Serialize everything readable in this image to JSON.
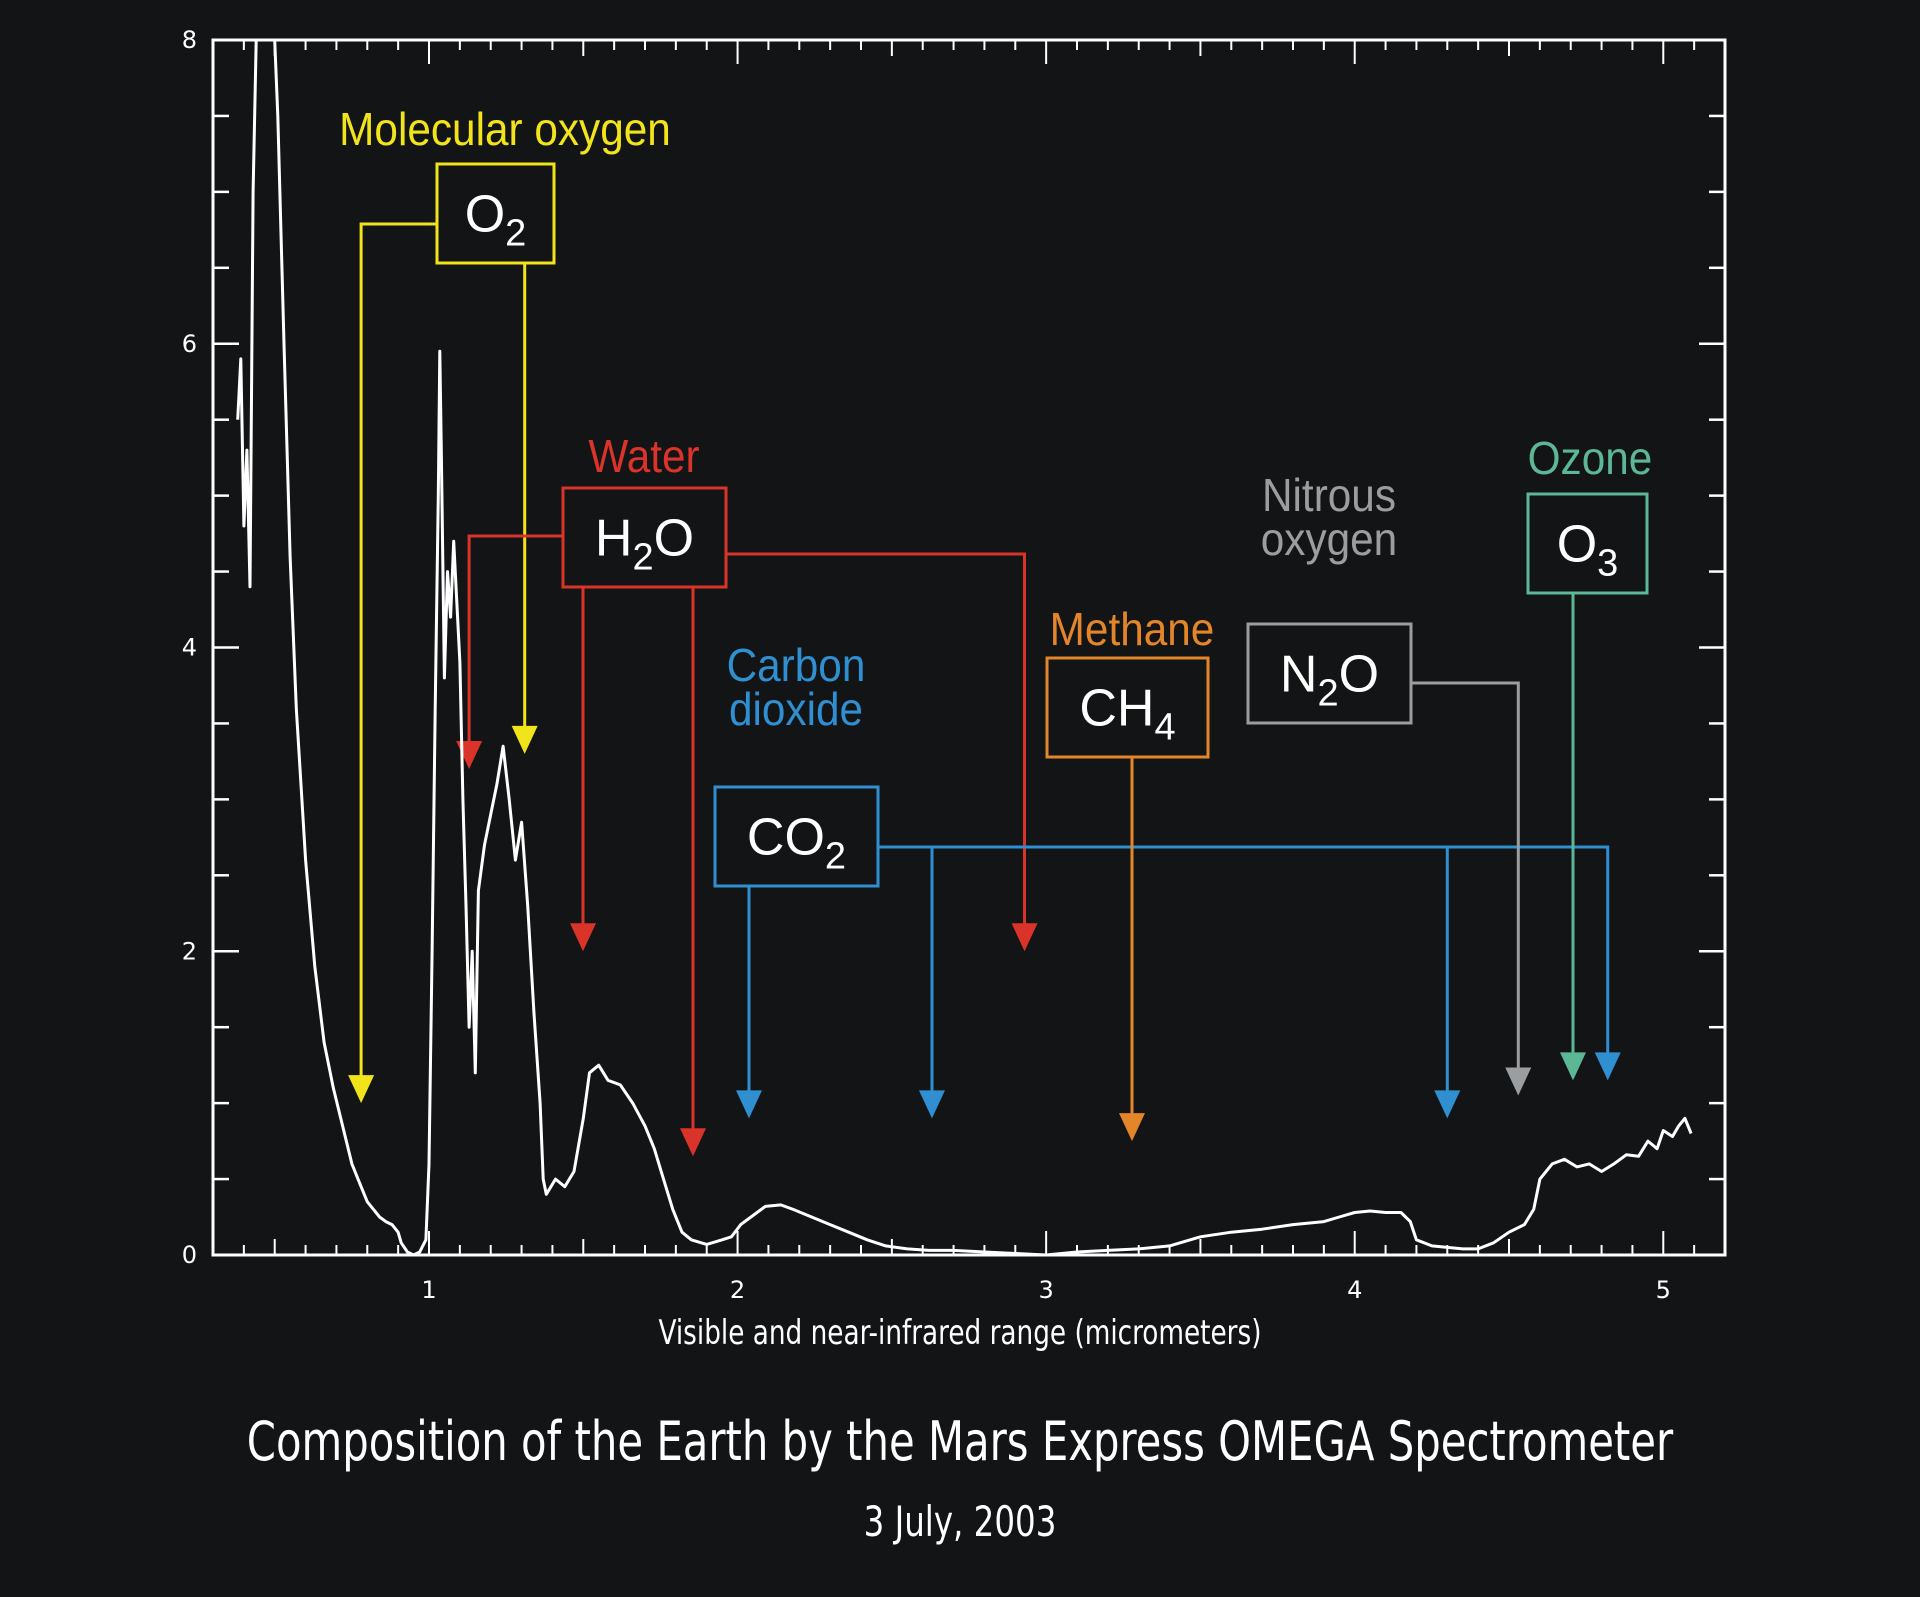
{
  "chart_data": {
    "type": "line",
    "title": "Composition of the Earth by the Mars Express OMEGA Spectrometer",
    "subtitle": "3 July, 2003",
    "xlabel": "Visible and near-infrared range (micrometers)",
    "ylabel": "",
    "xlim": [
      0.3,
      5.2
    ],
    "ylim": [
      0,
      8
    ],
    "x_ticks": [
      1,
      2,
      3,
      4,
      5
    ],
    "y_ticks": [
      0,
      2,
      4,
      6,
      8
    ],
    "grid": false,
    "series": [
      {
        "color": "#ffffff",
        "points": [
          [
            0.38,
            5.5
          ],
          [
            0.39,
            5.9
          ],
          [
            0.4,
            4.8
          ],
          [
            0.41,
            5.3
          ],
          [
            0.42,
            4.4
          ],
          [
            0.43,
            7.0
          ],
          [
            0.44,
            8.0
          ],
          [
            0.5,
            8.0
          ],
          [
            0.51,
            7.5
          ],
          [
            0.53,
            6.0
          ],
          [
            0.55,
            4.6
          ],
          [
            0.57,
            3.6
          ],
          [
            0.6,
            2.6
          ],
          [
            0.63,
            1.9
          ],
          [
            0.66,
            1.4
          ],
          [
            0.69,
            1.1
          ],
          [
            0.72,
            0.85
          ],
          [
            0.75,
            0.6
          ],
          [
            0.78,
            0.45
          ],
          [
            0.8,
            0.35
          ],
          [
            0.82,
            0.3
          ],
          [
            0.84,
            0.25
          ],
          [
            0.86,
            0.22
          ],
          [
            0.88,
            0.2
          ],
          [
            0.9,
            0.15
          ],
          [
            0.91,
            0.08
          ],
          [
            0.93,
            0.02
          ],
          [
            0.95,
            0.0
          ],
          [
            0.97,
            0.02
          ],
          [
            0.99,
            0.1
          ],
          [
            1.0,
            0.6
          ],
          [
            1.01,
            2.0
          ],
          [
            1.02,
            3.6
          ],
          [
            1.03,
            5.0
          ],
          [
            1.035,
            5.95
          ],
          [
            1.04,
            5.3
          ],
          [
            1.05,
            3.8
          ],
          [
            1.06,
            4.5
          ],
          [
            1.07,
            4.2
          ],
          [
            1.08,
            4.7
          ],
          [
            1.09,
            4.3
          ],
          [
            1.1,
            3.9
          ],
          [
            1.11,
            3.0
          ],
          [
            1.12,
            2.3
          ],
          [
            1.13,
            1.5
          ],
          [
            1.14,
            2.0
          ],
          [
            1.15,
            1.2
          ],
          [
            1.16,
            2.4
          ],
          [
            1.18,
            2.7
          ],
          [
            1.2,
            2.9
          ],
          [
            1.22,
            3.1
          ],
          [
            1.24,
            3.35
          ],
          [
            1.26,
            3.0
          ],
          [
            1.28,
            2.6
          ],
          [
            1.3,
            2.85
          ],
          [
            1.32,
            2.3
          ],
          [
            1.34,
            1.6
          ],
          [
            1.36,
            1.0
          ],
          [
            1.37,
            0.5
          ],
          [
            1.38,
            0.4
          ],
          [
            1.41,
            0.5
          ],
          [
            1.44,
            0.45
          ],
          [
            1.47,
            0.55
          ],
          [
            1.5,
            0.9
          ],
          [
            1.52,
            1.2
          ],
          [
            1.55,
            1.25
          ],
          [
            1.58,
            1.15
          ],
          [
            1.62,
            1.12
          ],
          [
            1.66,
            1.0
          ],
          [
            1.7,
            0.85
          ],
          [
            1.73,
            0.7
          ],
          [
            1.76,
            0.5
          ],
          [
            1.79,
            0.3
          ],
          [
            1.82,
            0.15
          ],
          [
            1.85,
            0.1
          ],
          [
            1.9,
            0.07
          ],
          [
            1.95,
            0.1
          ],
          [
            1.98,
            0.12
          ],
          [
            2.01,
            0.2
          ],
          [
            2.05,
            0.26
          ],
          [
            2.09,
            0.32
          ],
          [
            2.14,
            0.33
          ],
          [
            2.18,
            0.3
          ],
          [
            2.24,
            0.25
          ],
          [
            2.3,
            0.2
          ],
          [
            2.36,
            0.15
          ],
          [
            2.42,
            0.1
          ],
          [
            2.48,
            0.06
          ],
          [
            2.55,
            0.04
          ],
          [
            2.62,
            0.03
          ],
          [
            2.7,
            0.03
          ],
          [
            2.8,
            0.02
          ],
          [
            2.9,
            0.01
          ],
          [
            3.0,
            0.0
          ],
          [
            3.1,
            0.02
          ],
          [
            3.2,
            0.03
          ],
          [
            3.3,
            0.04
          ],
          [
            3.4,
            0.06
          ],
          [
            3.5,
            0.12
          ],
          [
            3.6,
            0.15
          ],
          [
            3.7,
            0.17
          ],
          [
            3.8,
            0.2
          ],
          [
            3.9,
            0.22
          ],
          [
            3.95,
            0.25
          ],
          [
            4.0,
            0.28
          ],
          [
            4.05,
            0.29
          ],
          [
            4.1,
            0.28
          ],
          [
            4.15,
            0.28
          ],
          [
            4.18,
            0.22
          ],
          [
            4.2,
            0.1
          ],
          [
            4.25,
            0.06
          ],
          [
            4.3,
            0.05
          ],
          [
            4.35,
            0.04
          ],
          [
            4.4,
            0.04
          ],
          [
            4.45,
            0.08
          ],
          [
            4.5,
            0.15
          ],
          [
            4.55,
            0.2
          ],
          [
            4.58,
            0.3
          ],
          [
            4.6,
            0.5
          ],
          [
            4.64,
            0.6
          ],
          [
            4.68,
            0.63
          ],
          [
            4.72,
            0.58
          ],
          [
            4.76,
            0.6
          ],
          [
            4.8,
            0.55
          ],
          [
            4.84,
            0.6
          ],
          [
            4.88,
            0.66
          ],
          [
            4.92,
            0.65
          ],
          [
            4.95,
            0.75
          ],
          [
            4.98,
            0.7
          ],
          [
            5.0,
            0.82
          ],
          [
            5.03,
            0.78
          ],
          [
            5.05,
            0.85
          ],
          [
            5.07,
            0.9
          ],
          [
            5.09,
            0.8
          ]
        ]
      }
    ],
    "annotations": [
      {
        "name_lines": [
          "Molecular oxygen"
        ],
        "formula": "O",
        "subscript": "2",
        "suffix": "",
        "color": "#f2e41b",
        "absorption_x": [
          0.78,
          1.31
        ],
        "absorption_y": [
          1.0,
          3.3
        ]
      },
      {
        "name_lines": [
          "Water"
        ],
        "formula": "H",
        "subscript": "2",
        "suffix": "O",
        "color": "#d9332a",
        "absorption_x": [
          1.13,
          1.48,
          1.85,
          2.93
        ],
        "absorption_y": [
          3.2,
          2.0,
          0.65,
          2.0
        ]
      },
      {
        "name_lines": [
          "Carbon",
          "dioxide"
        ],
        "formula": "CO",
        "subscript": "2",
        "suffix": "",
        "color": "#2f8fd1",
        "absorption_x": [
          2.03,
          2.63,
          4.3,
          4.82
        ],
        "absorption_y": [
          0.9,
          0.9,
          0.9,
          1.15
        ]
      },
      {
        "name_lines": [
          "Methane"
        ],
        "formula": "CH",
        "subscript": "4",
        "suffix": "",
        "color": "#e38529",
        "absorption_x": [
          3.28
        ],
        "absorption_y": [
          0.75
        ]
      },
      {
        "name_lines": [
          "Nitrous",
          "oxygen"
        ],
        "formula": "N",
        "subscript": "2",
        "suffix": "O",
        "color": "#9b9ea0",
        "absorption_x": [
          4.53
        ],
        "absorption_y": [
          1.05
        ]
      },
      {
        "name_lines": [
          "Ozone"
        ],
        "formula": "O",
        "subscript": "3",
        "suffix": "",
        "color": "#5cb796",
        "absorption_x": [
          4.7
        ],
        "absorption_y": [
          1.15
        ]
      }
    ]
  }
}
